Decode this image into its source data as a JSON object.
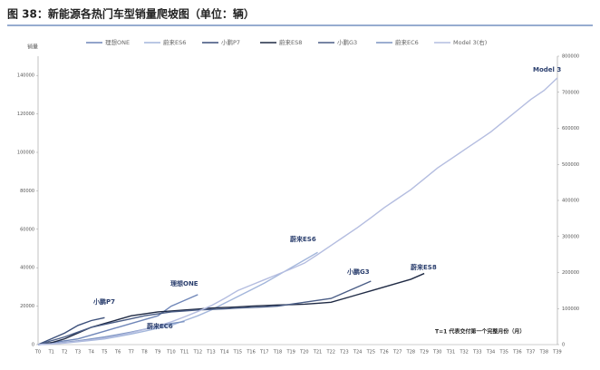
{
  "chart_data": {
    "type": "line",
    "title": "图 38：新能源各热门车型销量爬坡图（单位：辆）",
    "y_axis_label": "销量",
    "categories": [
      "T0",
      "T1",
      "T2",
      "T3",
      "T4",
      "T5",
      "T6",
      "T7",
      "T8",
      "T9",
      "T10",
      "T11",
      "T12",
      "T13",
      "T14",
      "T15",
      "T16",
      "T17",
      "T18",
      "T19",
      "T20",
      "T21",
      "T22",
      "T23",
      "T24",
      "T25",
      "T26",
      "T27",
      "T28",
      "T29",
      "T30",
      "T31",
      "T32",
      "T33",
      "T34",
      "T35",
      "T36",
      "T37",
      "T38",
      "T39"
    ],
    "series": [
      {
        "name": "理想ONE",
        "color": "#6f86b8",
        "values": [
          0,
          1000,
          2000,
          3000,
          5000,
          7000,
          9000,
          11000,
          13000,
          15000,
          20000,
          23000,
          26000,
          null,
          null,
          null,
          null,
          null,
          null,
          null,
          null,
          null,
          null,
          null,
          null,
          null,
          null,
          null,
          null,
          null,
          null,
          null,
          null,
          null,
          null,
          null,
          null,
          null,
          null,
          null
        ]
      },
      {
        "name": "蔚来ES6",
        "color": "#a3b6db",
        "values": [
          0,
          300,
          800,
          1500,
          2200,
          3000,
          4200,
          5500,
          7000,
          8500,
          10000,
          12500,
          15000,
          18000,
          21500,
          25000,
          28500,
          32000,
          36000,
          40000,
          44000,
          48000,
          null,
          null,
          null,
          null,
          null,
          null,
          null,
          null,
          null,
          null,
          null,
          null,
          null,
          null,
          null,
          null,
          null,
          null
        ]
      },
      {
        "name": "小鹏P7",
        "color": "#3b4f7a",
        "values": [
          0,
          3000,
          6000,
          10000,
          12500,
          14000,
          null,
          null,
          null,
          null,
          null,
          null,
          null,
          null,
          null,
          null,
          null,
          null,
          null,
          null,
          null,
          null,
          null,
          null,
          null,
          null,
          null,
          null,
          null,
          null,
          null,
          null,
          null,
          null,
          null,
          null,
          null,
          null,
          null,
          null
        ]
      },
      {
        "name": "蔚来ES8",
        "color": "#1f2a44",
        "values": [
          0,
          1000,
          3000,
          6000,
          9000,
          11000,
          13000,
          15000,
          16000,
          17000,
          17500,
          18000,
          18500,
          19000,
          19300,
          19600,
          20000,
          20300,
          20600,
          20800,
          21000,
          21500,
          22000,
          24000,
          26000,
          28000,
          30000,
          32000,
          34000,
          37000,
          null,
          null,
          null,
          null,
          null,
          null,
          null,
          null,
          null,
          null
        ]
      },
      {
        "name": "小鹏G3",
        "color": "#4a5d86",
        "values": [
          0,
          2000,
          4000,
          6500,
          9000,
          10500,
          12000,
          13500,
          15000,
          16000,
          17000,
          17500,
          18000,
          18300,
          18600,
          19000,
          19300,
          19600,
          20000,
          21000,
          22000,
          23000,
          24000,
          27000,
          30000,
          33000,
          null,
          null,
          null,
          null,
          null,
          null,
          null,
          null,
          null,
          null,
          null,
          null,
          null,
          null
        ]
      },
      {
        "name": "蔚来EC6",
        "color": "#7c94c2",
        "values": [
          0,
          500,
          1200,
          2000,
          3000,
          4000,
          5200,
          6500,
          8000,
          9500,
          11000,
          12000,
          null,
          null,
          null,
          null,
          null,
          null,
          null,
          null,
          null,
          null,
          null,
          null,
          null,
          null,
          null,
          null,
          null,
          null,
          null,
          null,
          null,
          null,
          null,
          null,
          null,
          null,
          null,
          null
        ]
      },
      {
        "name": "Model 3(右)",
        "color": "#b4bde0",
        "axis": "y2",
        "values": [
          0,
          2000,
          5000,
          9000,
          13000,
          18000,
          25000,
          33000,
          42000,
          52000,
          63000,
          77000,
          92000,
          108000,
          128000,
          150000,
          165000,
          180000,
          195000,
          210000,
          226000,
          250000,
          275000,
          300000,
          325000,
          352000,
          380000,
          405000,
          430000,
          460000,
          490000,
          515000,
          540000,
          565000,
          590000,
          620000,
          650000,
          680000,
          705000,
          740000
        ]
      }
    ],
    "ylim": [
      0,
      150000
    ],
    "yticks": [
      0,
      20000,
      40000,
      60000,
      80000,
      100000,
      120000,
      140000
    ],
    "y2lim": [
      0,
      800000
    ],
    "y2ticks": [
      0,
      100000,
      200000,
      300000,
      400000,
      500000,
      600000,
      700000,
      800000
    ],
    "annotations": [
      "Model 3",
      "蔚来ES6",
      "小鹏G3",
      "蔚来ES8",
      "理想ONE",
      "小鹏P7",
      "蔚来EC6",
      "T=1 代表交付第一个完整月份（月）"
    ]
  }
}
